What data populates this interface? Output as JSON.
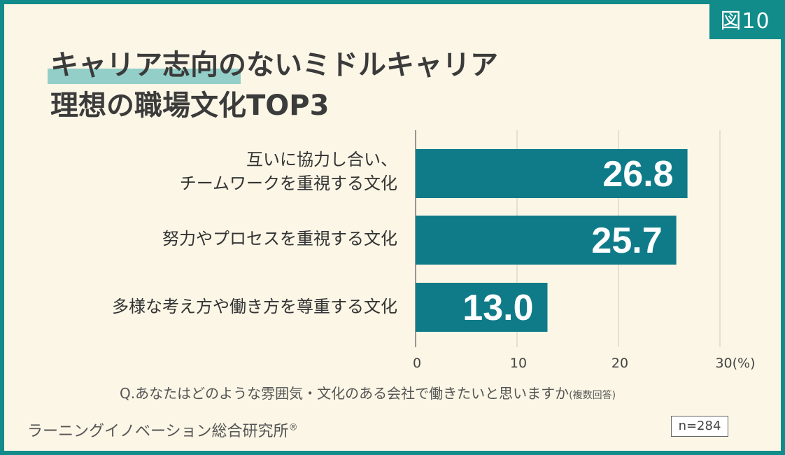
{
  "figure_label": "図10",
  "title_lines": [
    "キャリア志向のないミドルキャリア",
    "理想の職場文化TOP3"
  ],
  "question": "Q.あなたはどのような雰囲気・文化のある会社で働きたいと思いますか",
  "question_note": "(複数回答)",
  "source": "ラーニングイノベーション総合研究所",
  "source_mark": "®",
  "sample": "n=284",
  "colors": {
    "bar": "#0f7b88",
    "frame": "#128b8b",
    "highlight": "#93cfc8",
    "background": "#fbf6e6"
  },
  "chart_data": {
    "type": "bar",
    "orientation": "horizontal",
    "categories": [
      [
        "互いに協力し合い、",
        "チームワークを重視する文化"
      ],
      [
        "努力やプロセスを重視する文化"
      ],
      [
        "多様な考え方や働き方を尊重する文化"
      ]
    ],
    "values": [
      26.8,
      25.7,
      13.0
    ],
    "data_labels": [
      "26.8",
      "25.7",
      "13.0"
    ],
    "xlim": [
      0,
      30
    ],
    "x_ticks": [
      "0",
      "10",
      "20",
      "30(%)"
    ],
    "grid": true,
    "xlabel": "",
    "ylabel": ""
  }
}
